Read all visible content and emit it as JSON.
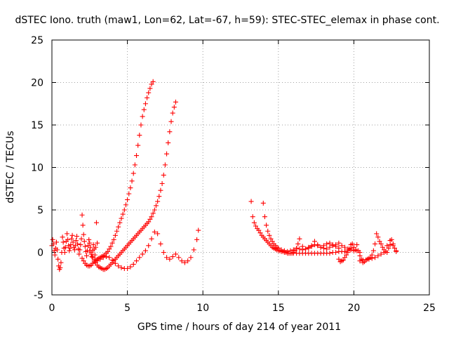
{
  "chart_data": {
    "type": "scatter",
    "title": "dSTEC Iono. truth (maw1, Lon=62, Lat=-67, h=59): STEC-STEC_elemax in phase cont.",
    "xlabel": "GPS time / hours of day 214 of year 2011",
    "ylabel": "dSTEC  / TECUs",
    "xlim": [
      0,
      25
    ],
    "ylim": [
      -5,
      25
    ],
    "xticks": [
      0,
      5,
      10,
      15,
      20,
      25
    ],
    "yticks": [
      -5,
      0,
      5,
      10,
      15,
      20,
      25
    ],
    "grid": true,
    "marker": "+",
    "color": "#ff0000",
    "series": [
      {
        "x": [
          0.0,
          0.05,
          0.1,
          0.15,
          0.2,
          0.25,
          0.3,
          0.35,
          0.4,
          0.45,
          0.5,
          0.55,
          0.6,
          0.65,
          0.7,
          0.75,
          0.8,
          0.85,
          0.9,
          0.95,
          1.0,
          1.05,
          1.1,
          1.15,
          1.2,
          1.25,
          1.3,
          1.35,
          1.4,
          1.45,
          1.5,
          1.55,
          1.6,
          1.65,
          1.7,
          1.75,
          1.8,
          1.85,
          1.9,
          1.95,
          2.0,
          2.05,
          2.1,
          2.15,
          2.2,
          2.25,
          2.3,
          2.35,
          2.4,
          2.45,
          2.5,
          2.55,
          2.6,
          2.65,
          2.7,
          2.75,
          2.8,
          2.85,
          2.9,
          2.95,
          3.0
        ],
        "y": [
          0.8,
          1.5,
          1.0,
          0.2,
          -0.3,
          0.5,
          1.2,
          0.3,
          -0.8,
          -1.6,
          -2.0,
          -1.8,
          -1.2,
          0.0,
          1.8,
          1.2,
          0.5,
          0.0,
          0.6,
          1.3,
          2.2,
          1.5,
          0.8,
          0.2,
          0.5,
          0.9,
          1.6,
          2.0,
          1.2,
          0.6,
          0.3,
          0.8,
          1.4,
          1.9,
          1.0,
          0.4,
          -0.2,
          0.3,
          0.9,
          1.6,
          4.4,
          3.2,
          2.1,
          1.3,
          0.7,
          0.1,
          -0.4,
          0.2,
          0.8,
          1.5,
          1.1,
          0.6,
          0.0,
          -0.5,
          0.2,
          0.9,
          0.4,
          -0.3,
          0.6,
          3.5,
          1.1
        ]
      },
      {
        "x": [
          2.0,
          2.1,
          2.2,
          2.3,
          2.4,
          2.5,
          2.6,
          2.7,
          2.8,
          2.9,
          3.0,
          3.1,
          3.2,
          3.3,
          3.4,
          3.5,
          3.6,
          3.7,
          3.8,
          3.9,
          4.0,
          4.1,
          4.2,
          4.3,
          4.4,
          4.5,
          4.6,
          4.7,
          4.8,
          4.9,
          5.0,
          5.1,
          5.2,
          5.3,
          5.4,
          5.5,
          5.6,
          5.7,
          5.8,
          5.9,
          6.0,
          6.1,
          6.2,
          6.3,
          6.4,
          6.5,
          6.6,
          6.7
        ],
        "y": [
          -0.7,
          -1.0,
          -1.3,
          -1.5,
          -1.6,
          -1.6,
          -1.5,
          -1.3,
          -1.1,
          -0.9,
          -0.8,
          -0.7,
          -0.6,
          -0.5,
          -0.4,
          -0.3,
          -0.1,
          0.1,
          0.4,
          0.7,
          1.1,
          1.5,
          2.0,
          2.5,
          3.0,
          3.5,
          4.0,
          4.5,
          5.0,
          5.6,
          6.2,
          6.9,
          7.6,
          8.4,
          9.3,
          10.3,
          11.4,
          12.6,
          13.8,
          15.0,
          16.0,
          16.8,
          17.5,
          18.2,
          18.8,
          19.3,
          19.8,
          20.1
        ]
      },
      {
        "x": [
          2.5,
          2.6,
          2.7,
          2.8,
          2.9,
          3.0,
          3.1,
          3.2,
          3.3,
          3.4,
          3.5,
          3.6,
          3.7,
          3.8,
          3.9,
          4.0,
          4.1,
          4.2,
          4.3,
          4.4,
          4.5,
          4.6,
          4.7,
          4.8,
          4.9,
          5.0,
          5.1,
          5.2,
          5.3,
          5.4,
          5.5,
          5.6,
          5.7,
          5.8,
          5.9,
          6.0,
          6.1,
          6.2,
          6.3,
          6.4,
          6.5,
          6.6,
          6.7,
          6.8,
          6.9,
          7.0,
          7.1,
          7.2,
          7.3,
          7.4,
          7.5,
          7.6,
          7.7,
          7.8,
          7.9,
          8.0,
          8.1,
          8.2
        ],
        "y": [
          0.2,
          -0.2,
          -0.6,
          -0.9,
          -1.2,
          -1.5,
          -1.7,
          -1.8,
          -1.9,
          -2.0,
          -2.0,
          -1.9,
          -1.8,
          -1.6,
          -1.4,
          -1.2,
          -1.0,
          -0.8,
          -0.6,
          -0.4,
          -0.2,
          0.0,
          0.2,
          0.4,
          0.6,
          0.8,
          1.0,
          1.2,
          1.4,
          1.6,
          1.8,
          2.0,
          2.2,
          2.4,
          2.6,
          2.8,
          3.0,
          3.2,
          3.4,
          3.6,
          3.9,
          4.2,
          4.6,
          5.0,
          5.5,
          6.0,
          6.6,
          7.3,
          8.1,
          9.1,
          10.3,
          11.6,
          12.9,
          14.2,
          15.4,
          16.4,
          17.1,
          17.7
        ]
      },
      {
        "x": [
          3.0,
          3.2,
          3.4,
          3.6,
          3.8,
          4.0,
          4.2,
          4.4,
          4.6,
          4.8,
          5.0,
          5.2,
          5.4,
          5.6,
          5.8,
          6.0,
          6.2,
          6.4,
          6.6,
          6.8,
          7.0,
          7.2,
          7.4,
          7.6,
          7.8,
          8.0,
          8.2,
          8.4,
          8.6,
          8.8,
          9.0,
          9.2,
          9.4,
          9.6,
          9.7
        ],
        "y": [
          -1.0,
          -0.8,
          -0.6,
          -0.5,
          -0.6,
          -0.9,
          -1.3,
          -1.6,
          -1.8,
          -1.9,
          -1.9,
          -1.7,
          -1.4,
          -1.0,
          -0.6,
          -0.2,
          0.2,
          0.8,
          1.6,
          2.4,
          2.2,
          1.0,
          0.0,
          -0.6,
          -0.8,
          -0.5,
          -0.2,
          -0.6,
          -1.0,
          -1.2,
          -1.0,
          -0.6,
          0.3,
          1.5,
          2.6
        ]
      },
      {
        "x": [
          13.2,
          13.3,
          13.4,
          13.5,
          13.6,
          13.7,
          13.8,
          13.9,
          14.0,
          14.1,
          14.2,
          14.3,
          14.4,
          14.5,
          14.6,
          14.7,
          14.8,
          14.9,
          15.0,
          15.1,
          15.2,
          15.3,
          15.4,
          15.5,
          15.6,
          15.7,
          15.8,
          15.9,
          16.0,
          16.2,
          16.4,
          16.6,
          16.8,
          17.0,
          17.2,
          17.4,
          17.6,
          17.8,
          18.0,
          18.2,
          18.4,
          18.6,
          18.8,
          19.0,
          19.2,
          19.4,
          19.6,
          19.8,
          20.0,
          20.2,
          20.4
        ],
        "y": [
          6.0,
          4.2,
          3.5,
          3.1,
          2.8,
          2.6,
          2.3,
          2.0,
          1.8,
          1.6,
          1.4,
          1.2,
          1.0,
          0.8,
          0.6,
          0.5,
          0.4,
          0.3,
          0.2,
          0.2,
          0.1,
          0.1,
          0.0,
          0.0,
          -0.1,
          -0.1,
          -0.1,
          -0.1,
          -0.1,
          -0.1,
          -0.1,
          -0.1,
          -0.1,
          -0.1,
          -0.1,
          -0.1,
          -0.1,
          -0.1,
          -0.1,
          -0.1,
          -0.1,
          0.0,
          0.0,
          0.1,
          0.1,
          0.1,
          0.2,
          0.3,
          0.3,
          0.2,
          0.0
        ]
      },
      {
        "x": [
          14.0,
          14.1,
          14.2,
          14.3,
          14.4,
          14.5,
          14.6,
          14.7,
          14.8,
          14.9,
          15.0,
          15.2,
          15.4,
          15.6,
          15.8,
          16.0,
          16.2,
          16.4,
          16.6,
          16.8,
          17.0,
          17.2,
          17.4,
          17.6,
          17.8,
          18.0,
          18.2,
          18.4,
          18.6,
          18.8,
          19.0,
          19.2,
          19.4,
          19.6,
          19.8,
          20.0
        ],
        "y": [
          5.8,
          4.2,
          3.2,
          2.5,
          2.0,
          1.6,
          1.3,
          1.0,
          0.8,
          0.6,
          0.5,
          0.3,
          0.2,
          0.1,
          0.2,
          0.3,
          0.5,
          0.4,
          0.3,
          0.4,
          0.6,
          0.8,
          0.9,
          0.8,
          0.6,
          0.5,
          0.4,
          0.6,
          0.8,
          0.9,
          1.1,
          0.8,
          0.6,
          0.4,
          0.5,
          0.2
        ]
      },
      {
        "x": [
          16.0,
          16.1,
          16.2,
          16.3,
          16.4,
          16.6,
          16.8,
          17.0,
          17.2,
          17.4,
          17.6,
          17.8,
          18.0,
          18.2,
          18.4,
          18.6,
          18.8,
          19.0
        ],
        "y": [
          0.0,
          0.2,
          0.5,
          1.0,
          1.6,
          0.7,
          0.4,
          0.5,
          0.7,
          1.3,
          0.9,
          0.6,
          0.8,
          1.0,
          1.1,
          0.9,
          0.7,
          0.5
        ]
      },
      {
        "x": [
          19.0,
          19.1,
          19.2,
          19.3,
          19.4,
          19.5,
          19.6,
          19.7,
          19.8,
          19.9,
          20.0,
          20.1,
          20.2,
          20.3,
          20.4,
          20.5,
          20.6,
          20.7,
          20.8,
          20.9,
          21.0,
          21.1,
          21.2,
          21.3,
          21.4,
          21.5,
          21.6,
          21.7,
          21.8,
          21.9,
          22.0,
          22.1,
          22.2,
          22.3,
          22.4,
          22.5,
          22.6,
          22.7,
          22.8
        ],
        "y": [
          -0.8,
          -1.1,
          -1.0,
          -0.9,
          -0.6,
          -0.3,
          0.0,
          0.4,
          0.9,
          1.0,
          0.6,
          0.3,
          0.9,
          0.2,
          -0.4,
          -0.8,
          -1.2,
          -1.1,
          -0.9,
          -0.8,
          -0.7,
          -0.6,
          -0.3,
          0.2,
          1.0,
          2.2,
          1.8,
          1.3,
          1.0,
          0.6,
          0.3,
          0.1,
          0.0,
          0.5,
          0.9,
          1.5,
          1.0,
          0.5,
          0.1
        ]
      },
      {
        "x": [
          20.4,
          20.6,
          20.8,
          21.0,
          21.2,
          21.4,
          21.6,
          21.8,
          22.0,
          22.2,
          22.4,
          22.6,
          22.8
        ],
        "y": [
          -1.0,
          -0.9,
          -0.9,
          -0.8,
          -0.7,
          -0.6,
          -0.4,
          -0.2,
          0.0,
          0.8,
          1.4,
          0.8,
          0.2
        ]
      }
    ]
  }
}
